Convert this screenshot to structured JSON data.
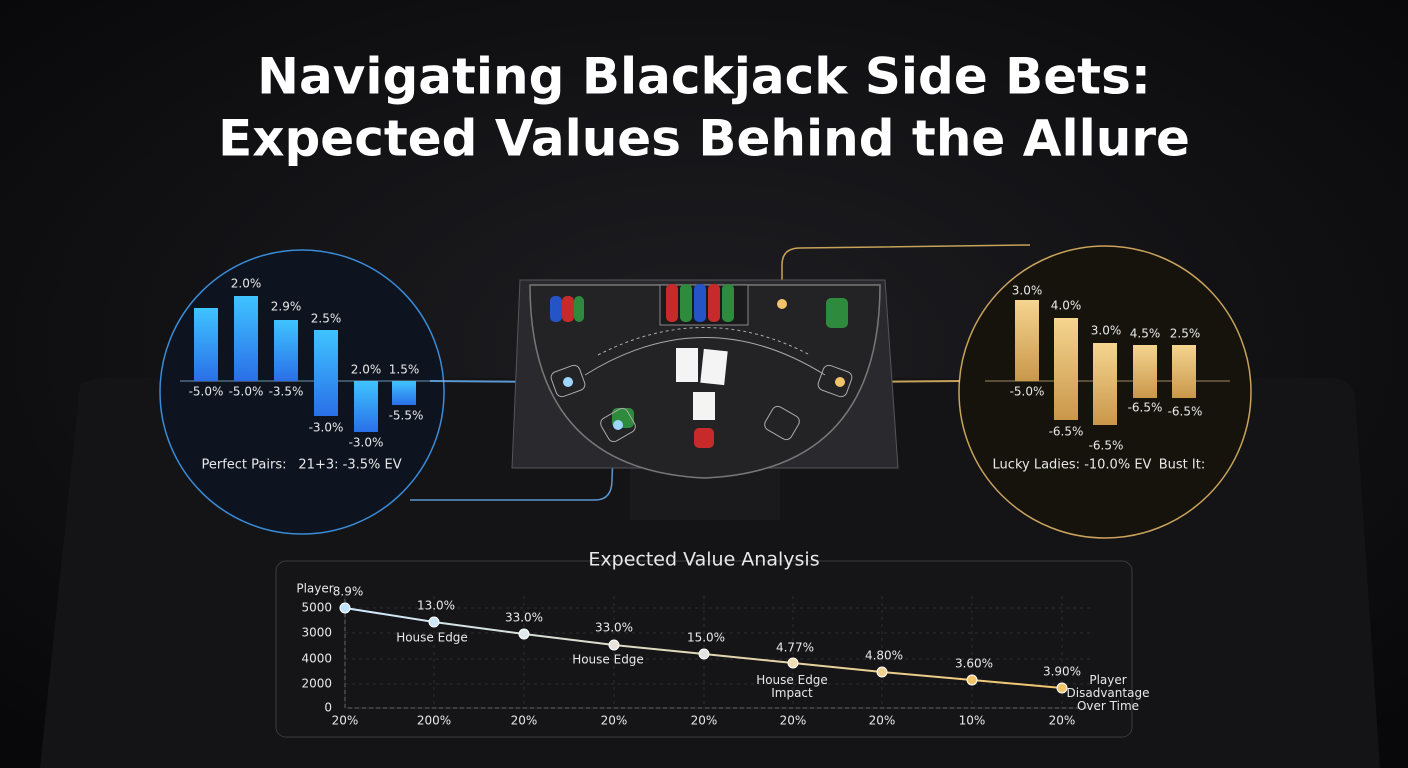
{
  "title": [
    "Navigating Blackjack Side Bets:",
    "Expected Values Behind the Allure"
  ],
  "left_panel": {
    "top_labels": [
      "2.0%",
      "2.9%",
      "2.5%",
      "2.0%",
      "1.5%"
    ],
    "bottom_labels": [
      "-5.0%",
      "-5.0%",
      "-3.5%",
      "-3.0%",
      "-3.0%",
      "-5.5%"
    ],
    "captions": [
      "Perfect Pairs:",
      "21+3: -3.5% EV"
    ]
  },
  "right_panel": {
    "top_labels": [
      "3.0%",
      "4.0%",
      "3.0%",
      "4.5%",
      "2.5%"
    ],
    "bottom_labels": [
      "-5.0%",
      "-6.5%",
      "-6.5%",
      "-6.5%",
      "-6.5%"
    ],
    "captions": [
      "Lucky Ladies: -10.0% EV",
      "Bust It:"
    ]
  },
  "analysis": {
    "title": "Expected Value Analysis",
    "y_axis_title": "Player",
    "y_labels": [
      "5000",
      "3000",
      "4000",
      "2000",
      "0"
    ],
    "point_labels": [
      "8.9%",
      "13.0%",
      "33.0%",
      "33.0%",
      "15.0%",
      "4.77%",
      "4.80%",
      "3.60%",
      "3.90%"
    ],
    "x_labels": [
      "20%",
      "200%",
      "20%",
      "20%",
      "20%",
      "20%",
      "20%",
      "10%",
      "20%"
    ],
    "annotations": [
      "House Edge",
      "House Edge",
      "House Edge Impact",
      "Player Disadvantage Over Time"
    ]
  }
}
